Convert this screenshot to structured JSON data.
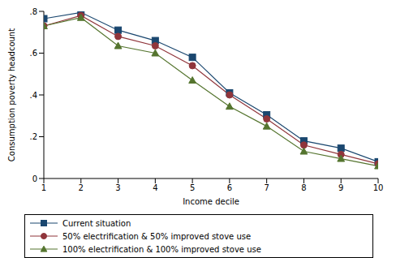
{
  "chart_data": {
    "type": "line",
    "x_label": "Income decile",
    "y_label": "Consumption poverty headcount",
    "x": [
      1,
      2,
      3,
      4,
      5,
      6,
      7,
      8,
      9,
      10
    ],
    "xlim": [
      1,
      10
    ],
    "xticks": [
      1,
      2,
      3,
      4,
      5,
      6,
      7,
      8,
      9,
      10
    ],
    "ylim": [
      0,
      0.8
    ],
    "yticks": [
      0,
      {
        "value": 0.2,
        "label": ".2"
      },
      {
        "value": 0.4,
        "label": ".4"
      },
      {
        "value": 0.6,
        "label": ".6"
      },
      {
        "value": 0.8,
        "label": ".8"
      }
    ],
    "grid": false,
    "legend": "bottom",
    "series": [
      {
        "name": "Current situation",
        "color": "#1a476f",
        "marker": "square",
        "values": [
          0.765,
          0.795,
          0.71,
          0.66,
          0.58,
          0.41,
          0.305,
          0.18,
          0.145,
          0.08
        ]
      },
      {
        "name": "50% electrification & 50% improved stove use",
        "color": "#90353b",
        "marker": "circle",
        "values": [
          0.73,
          0.78,
          0.68,
          0.635,
          0.54,
          0.4,
          0.285,
          0.16,
          0.115,
          0.07
        ]
      },
      {
        "name": "100% electrification & 100% improved stove use",
        "color": "#55752f",
        "marker": "triangle",
        "values": [
          0.73,
          0.77,
          0.635,
          0.6,
          0.47,
          0.345,
          0.25,
          0.13,
          0.095,
          0.06
        ]
      }
    ]
  }
}
